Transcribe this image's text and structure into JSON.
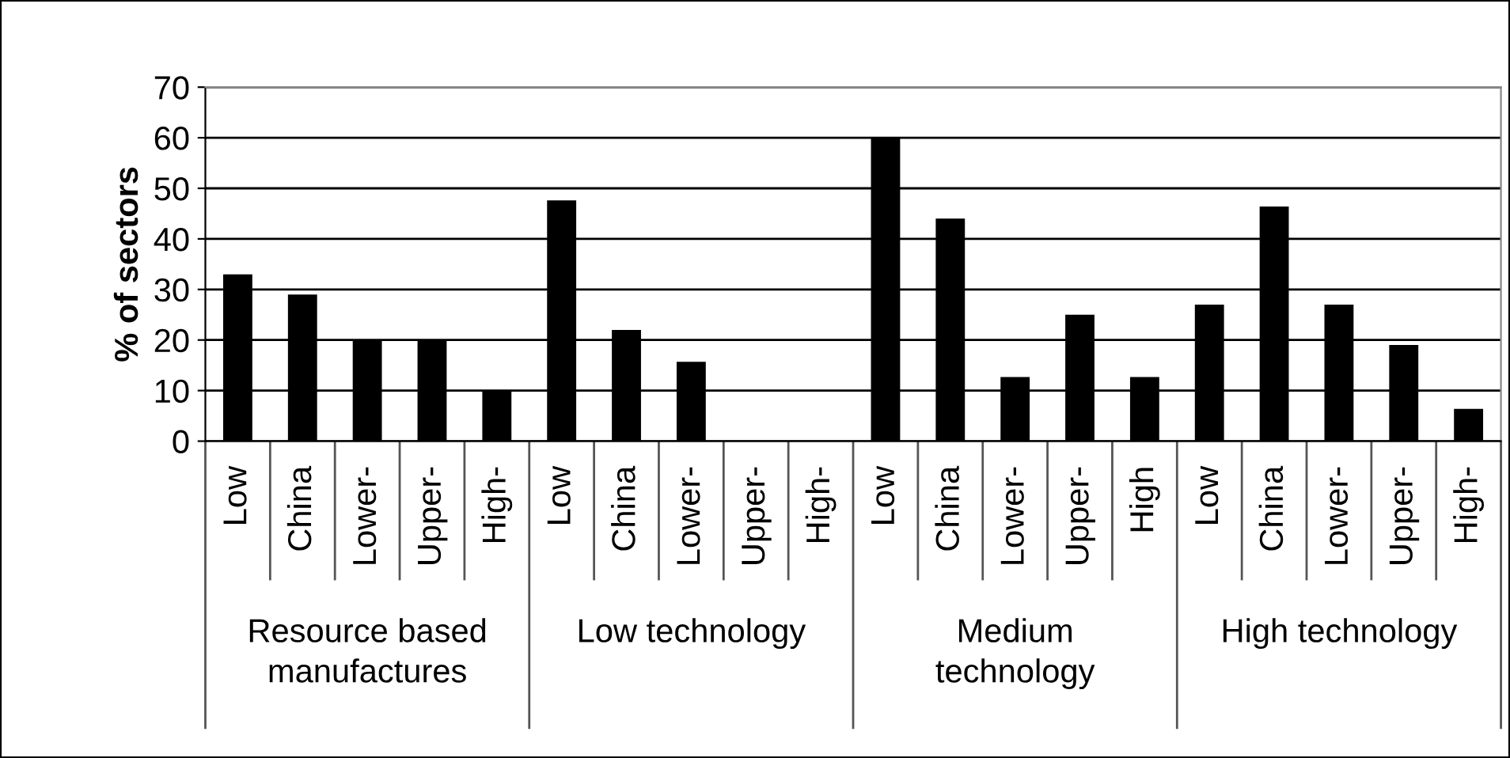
{
  "chart_data": {
    "type": "bar",
    "ylabel": "% of sectors",
    "categories": [
      "Low",
      "China",
      "Lower-",
      "Upper-",
      "High-",
      "Low",
      "China",
      "Lower-",
      "Upper-",
      "High-",
      "Low",
      "China",
      "Lower-",
      "Upper-",
      "High",
      "Low",
      "China",
      "Lower-",
      "Upper-",
      "High-"
    ],
    "values": [
      33,
      29,
      20,
      20,
      10,
      47.6,
      22,
      15.7,
      0,
      0,
      60,
      44,
      12.7,
      25,
      12.7,
      27,
      46.4,
      27,
      19,
      6.4
    ],
    "color": "#000000",
    "annotations": [
      "Resource based\nmanufactures",
      "Low technology",
      "Medium\ntechnology",
      "High technology"
    ],
    "ylim": [
      0,
      70
    ],
    "yticks": [
      0,
      10,
      20,
      30,
      40,
      50,
      60,
      70
    ],
    "grid": "y",
    "legend": false
  }
}
